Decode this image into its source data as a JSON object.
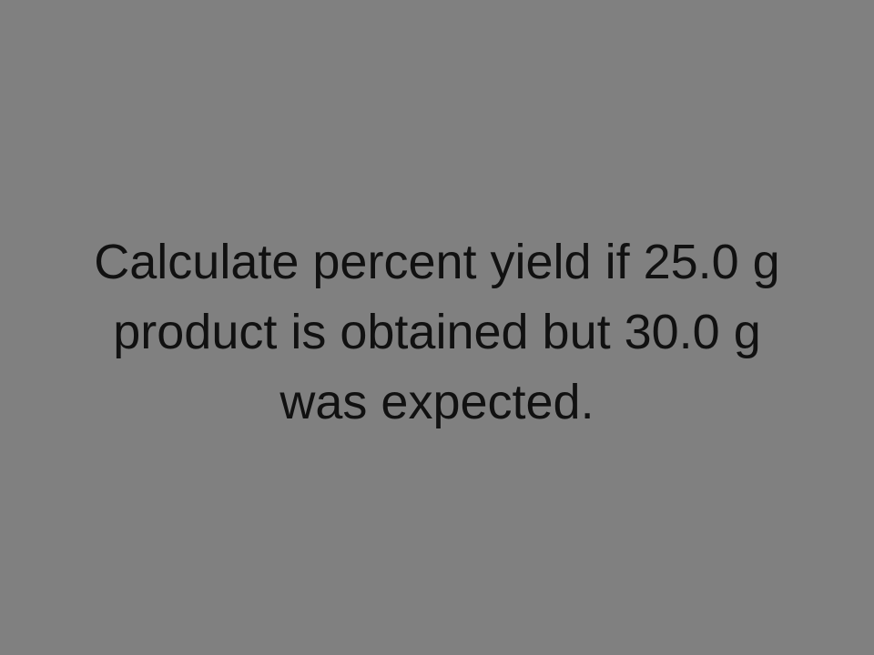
{
  "slide": {
    "background_color": "#808080",
    "text_color": "#111111",
    "question_lines": [
      "Calculate percent yield if 25.0 g",
      "product is obtained but 30.0 g",
      "was expected."
    ]
  }
}
